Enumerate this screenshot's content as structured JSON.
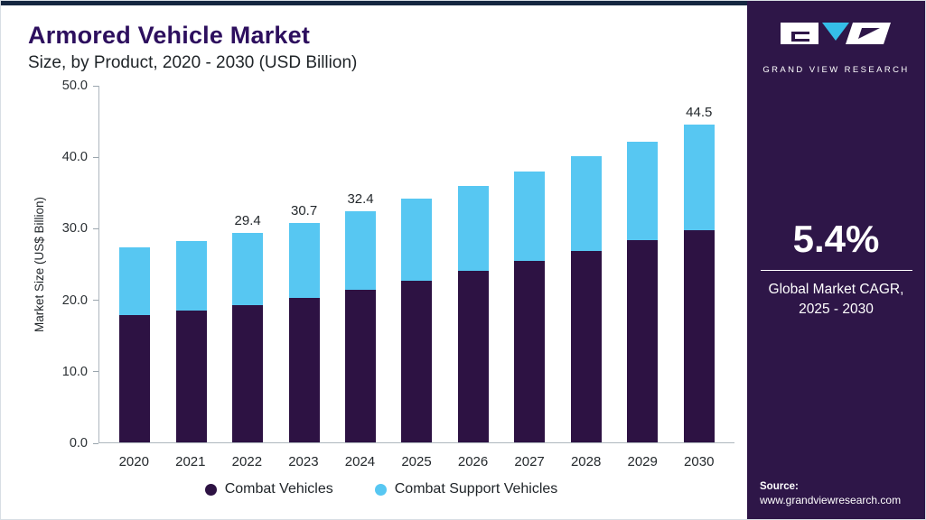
{
  "header": {
    "title": "Armored Vehicle Market",
    "subtitle": "Size, by Product, 2020 - 2030 (USD Billion)"
  },
  "chart_data": {
    "type": "bar",
    "stacked": true,
    "title": "Armored Vehicle Market Size, by Product, 2020 - 2030 (USD Billion)",
    "categories": [
      "2020",
      "2021",
      "2022",
      "2023",
      "2024",
      "2025",
      "2026",
      "2027",
      "2028",
      "2029",
      "2030"
    ],
    "series": [
      {
        "name": "Combat Vehicles",
        "color": "#2d1243",
        "values": [
          17.8,
          18.5,
          19.3,
          20.3,
          21.4,
          22.6,
          24.0,
          25.4,
          26.9,
          28.3,
          29.7
        ]
      },
      {
        "name": "Combat Support Vehicles",
        "color": "#57c7f2",
        "values": [
          9.5,
          9.7,
          10.1,
          10.4,
          11.0,
          11.6,
          12.0,
          12.6,
          13.2,
          13.9,
          14.8
        ]
      }
    ],
    "totals": [
      27.3,
      28.2,
      29.4,
      30.7,
      32.4,
      34.2,
      36.0,
      38.0,
      40.1,
      42.2,
      44.5
    ],
    "bar_labels": [
      "",
      "",
      "29.4",
      "30.7",
      "32.4",
      "",
      "",
      "",
      "",
      "",
      "44.5"
    ],
    "xlabel": "",
    "ylabel": "Market Size (US$ Billion)",
    "ylim": [
      0,
      50
    ],
    "yticks": [
      "0.0",
      "10.0",
      "20.0",
      "30.0",
      "40.0",
      "50.0"
    ],
    "grid": false,
    "legend_position": "bottom"
  },
  "sidebar": {
    "brand": "GRAND VIEW RESEARCH",
    "cagr_value": "5.4%",
    "cagr_caption_line1": "Global Market CAGR,",
    "cagr_caption_line2": "2025 - 2030",
    "source_label": "Source:",
    "source_url": "www.grandviewresearch.com"
  },
  "colors": {
    "accent_dark_purple": "#2d1243",
    "accent_light_blue": "#57c7f2",
    "sidebar_background": "#2e1648",
    "top_strip": "#152640",
    "title_text": "#2d0f5e"
  }
}
